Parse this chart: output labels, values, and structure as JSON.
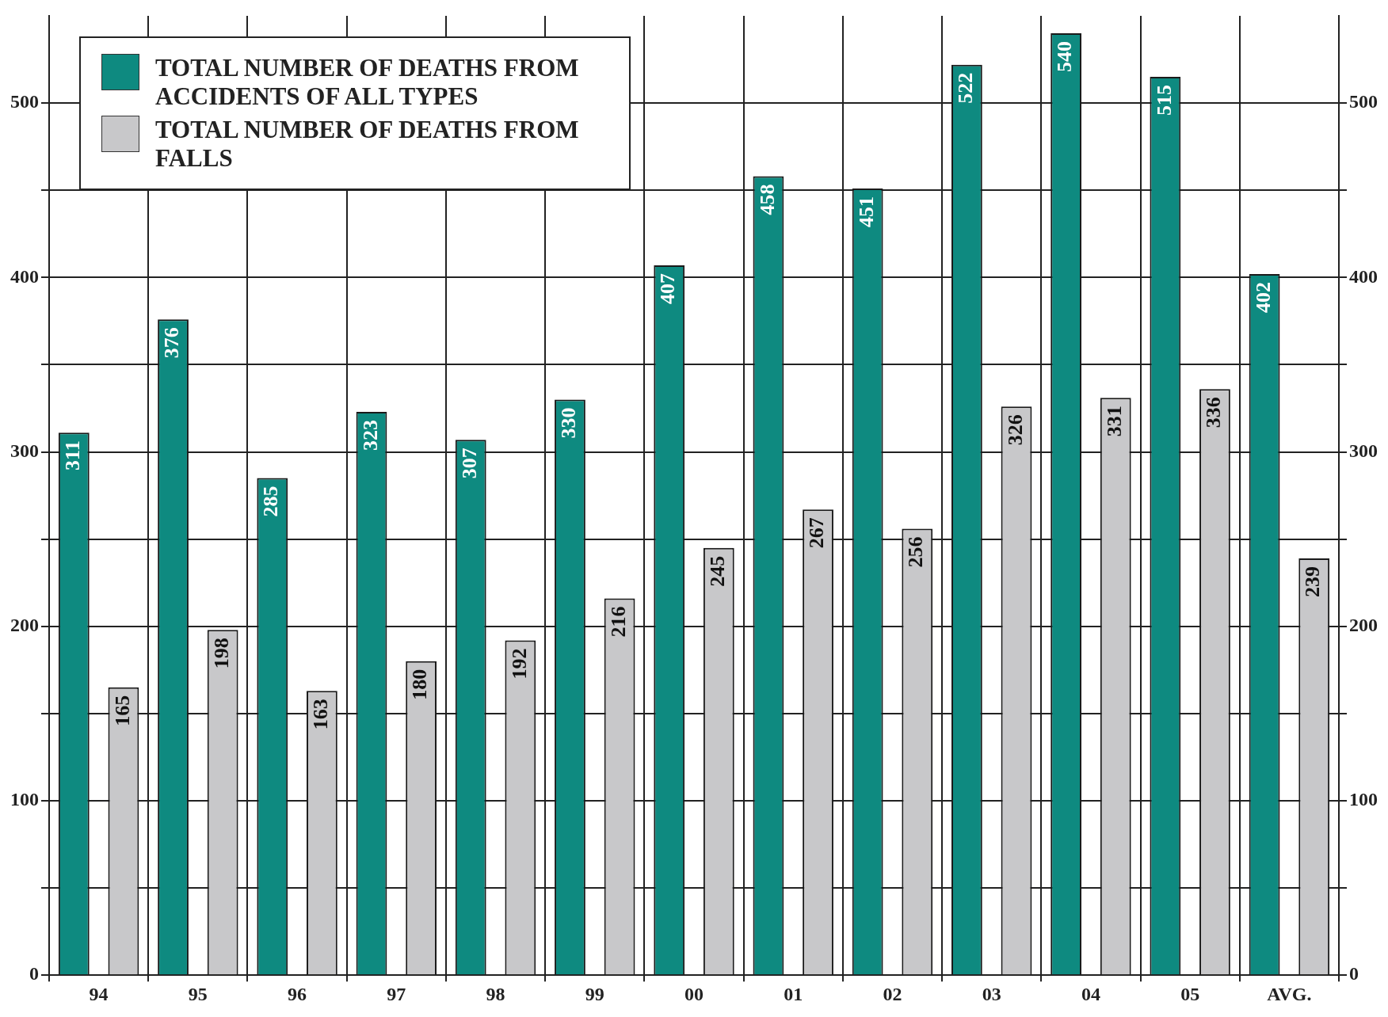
{
  "chart_data": {
    "type": "bar",
    "categories": [
      "94",
      "95",
      "96",
      "97",
      "98",
      "99",
      "00",
      "01",
      "02",
      "03",
      "04",
      "05",
      "AVG."
    ],
    "series": [
      {
        "name": "TOTAL NUMBER OF DEATHS FROM ACCIDENTS OF ALL TYPES",
        "color": "#0e8a80",
        "values": [
          311,
          376,
          285,
          323,
          307,
          330,
          407,
          458,
          451,
          522,
          540,
          515,
          402
        ]
      },
      {
        "name": "TOTAL NUMBER OF DEATHS FROM FALLS",
        "color": "#c8c8ca",
        "values": [
          165,
          198,
          163,
          180,
          192,
          216,
          245,
          267,
          256,
          326,
          331,
          336,
          239
        ]
      }
    ],
    "ylim": [
      0,
      550
    ],
    "yticks": [
      0,
      {
        "value": 50,
        "label": null
      },
      100,
      {
        "value": 150,
        "label": null
      },
      200,
      {
        "value": 250,
        "label": null
      },
      300,
      {
        "value": 350,
        "label": null
      },
      400,
      {
        "value": 450,
        "label": null
      },
      500
    ],
    "y2lim": [
      0,
      550
    ],
    "y2ticks": [
      0,
      {
        "value": 50,
        "label": null
      },
      100,
      {
        "value": 150,
        "label": null
      },
      200,
      {
        "value": 250,
        "label": null
      },
      300,
      {
        "value": 350,
        "label": null
      },
      400,
      {
        "value": 450,
        "label": null
      },
      500
    ],
    "grid": true,
    "legend": "top left",
    "data_labels": true
  }
}
